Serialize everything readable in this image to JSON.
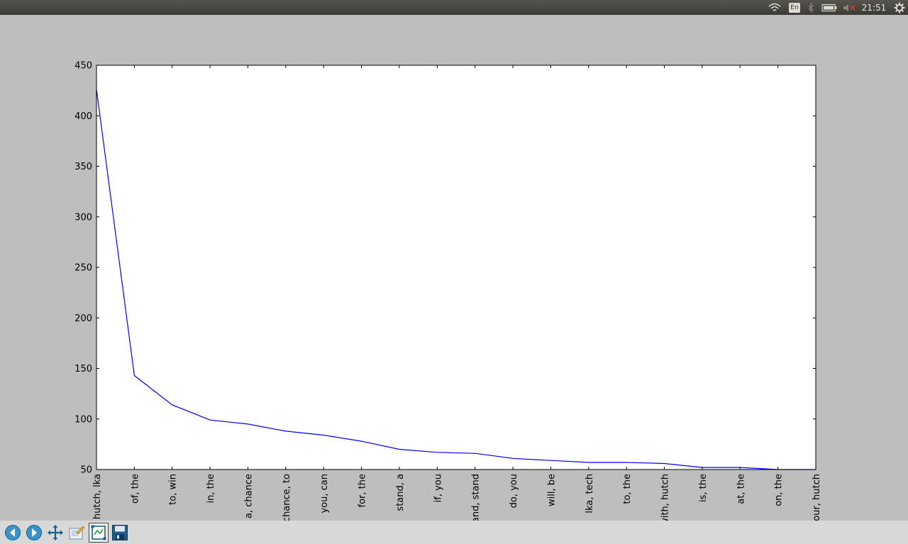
{
  "system_tray": {
    "keyboard_layout": "En",
    "clock": "21:51",
    "icons": [
      "wifi-icon",
      "keyboard-layout-icon",
      "bluetooth-icon",
      "battery-icon",
      "volume-muted-icon",
      "gear-icon"
    ]
  },
  "toolbar": {
    "buttons": [
      "back-icon",
      "forward-icon",
      "pan-icon",
      "configure-subplots-icon",
      "zoom-to-rect-icon",
      "save-icon"
    ]
  },
  "chart_data": {
    "type": "line",
    "title": "",
    "xlabel": "",
    "ylabel": "",
    "categories": [
      "hutch, lka",
      "of, the",
      "to, win",
      "in, the",
      "a, chance",
      "chance, to",
      "you, can",
      "for, the",
      "stand, a",
      "if, you",
      "and, stand",
      "do, you",
      "will, be",
      "lka, tech",
      "to, the",
      "with, hutch",
      "is, the",
      "at, the",
      "on, the",
      "your, hutch"
    ],
    "series": [
      {
        "values": [
          426,
          143,
          114,
          99,
          95,
          88,
          84,
          78,
          70,
          67,
          66,
          61,
          59,
          57,
          57,
          56,
          52,
          52,
          50,
          50
        ],
        "color": "#0000ff"
      }
    ],
    "ylim": [
      50,
      450
    ],
    "yticks": [
      50,
      100,
      150,
      200,
      250,
      300,
      350,
      400,
      450
    ],
    "grid": false
  }
}
